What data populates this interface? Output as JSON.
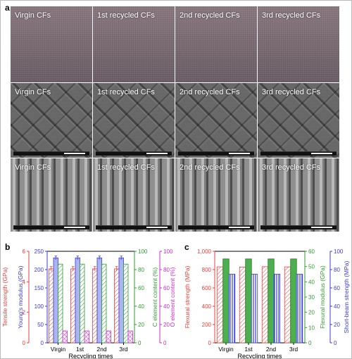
{
  "panels": {
    "a": "a",
    "b": "b",
    "c": "c"
  },
  "micrograph_rows": [
    {
      "row": "photo",
      "labels": [
        "Virgin CFs",
        "1st recycled CFs",
        "2nd recycled CFs",
        "3rd recycled CFs"
      ]
    },
    {
      "row": "weave-sem",
      "labels": [
        "Virgin CFs",
        "1st recycled CFs",
        "2nd recycled CFs",
        "3rd recycled CFs"
      ]
    },
    {
      "row": "fiber-sem",
      "labels": [
        "Virgin CFs",
        "1st recycled CFs",
        "2nd recycled CFs",
        "3rd recycled CFs"
      ]
    }
  ],
  "colors": {
    "red": "#e8413c",
    "blue": "#3b3bd6",
    "green": "#2e9e2e",
    "magenta": "#d12bd1",
    "red_fill": "#f6c4c0",
    "blue_fill": "#aab4f0",
    "green_fill": "#b8e0b0",
    "magenta_fill": "#f2b0f0"
  },
  "chart_data": [
    {
      "type": "bar",
      "panel": "b",
      "categories": [
        "Virgin",
        "1st",
        "2nd",
        "3rd"
      ],
      "xlabel": "Recycling times",
      "series": [
        {
          "name": "Tensile strength (GPa)",
          "axis": "left1",
          "values": [
            4.85,
            4.85,
            4.85,
            4.85
          ],
          "error": [
            0.15,
            0.15,
            0.15,
            0.15
          ]
        },
        {
          "name": "Young's modulus (GPa)",
          "axis": "left2",
          "values": [
            232,
            232,
            232,
            232
          ],
          "error": [
            5,
            5,
            5,
            5
          ]
        },
        {
          "name": "C element content (%)",
          "axis": "right1",
          "values": [
            86,
            86,
            86,
            86
          ]
        },
        {
          "name": "O element content (%)",
          "axis": "right2",
          "values": [
            13,
            13,
            13,
            13
          ]
        }
      ],
      "axes": {
        "left1": {
          "label": "Tensile strength (GPa)",
          "ylim": [
            0,
            6
          ],
          "ticks": [
            "0",
            "2",
            "4",
            "6"
          ]
        },
        "left2": {
          "label": "Young's modulus (GPa)",
          "ylim": [
            0,
            250
          ],
          "ticks": [
            "0",
            "50",
            "100",
            "150",
            "200",
            "250"
          ]
        },
        "right1": {
          "label": "C element content (%)",
          "ylim": [
            0,
            100
          ],
          "ticks": [
            "0",
            "20",
            "40",
            "60",
            "80",
            "100"
          ]
        },
        "right2": {
          "label": "O element content (%)",
          "ylim": [
            0,
            100
          ],
          "ticks": [
            "0",
            "20",
            "40",
            "60",
            "80",
            "100"
          ]
        }
      }
    },
    {
      "type": "bar",
      "panel": "c",
      "categories": [
        "Virgin",
        "1st",
        "2nd",
        "3rd"
      ],
      "xlabel": "Recycling times",
      "series": [
        {
          "name": "Flexural strength (MPa)",
          "axis": "left",
          "values": [
            830,
            828,
            832,
            830
          ]
        },
        {
          "name": "Flexural modulus (GPa)",
          "axis": "right1",
          "values": [
            55,
            55,
            55,
            55
          ]
        },
        {
          "name": "Short-beam strength (MPa)",
          "axis": "right2",
          "values": [
            75,
            75,
            75,
            75
          ]
        }
      ],
      "axes": {
        "left": {
          "label": "Flexural strength (MPa)",
          "ylim": [
            0,
            1000
          ],
          "ticks": [
            "0",
            "200",
            "400",
            "600",
            "800",
            "1,000"
          ]
        },
        "right1": {
          "label": "Flexural modulus (GPa)",
          "ylim": [
            0,
            60
          ],
          "ticks": [
            "0",
            "10",
            "20",
            "30",
            "40",
            "50",
            "60"
          ]
        },
        "right2": {
          "label": "Short-beam strength (MPa)",
          "ylim": [
            0,
            100
          ],
          "ticks": [
            "0",
            "20",
            "40",
            "60",
            "80",
            "100"
          ]
        }
      }
    }
  ]
}
